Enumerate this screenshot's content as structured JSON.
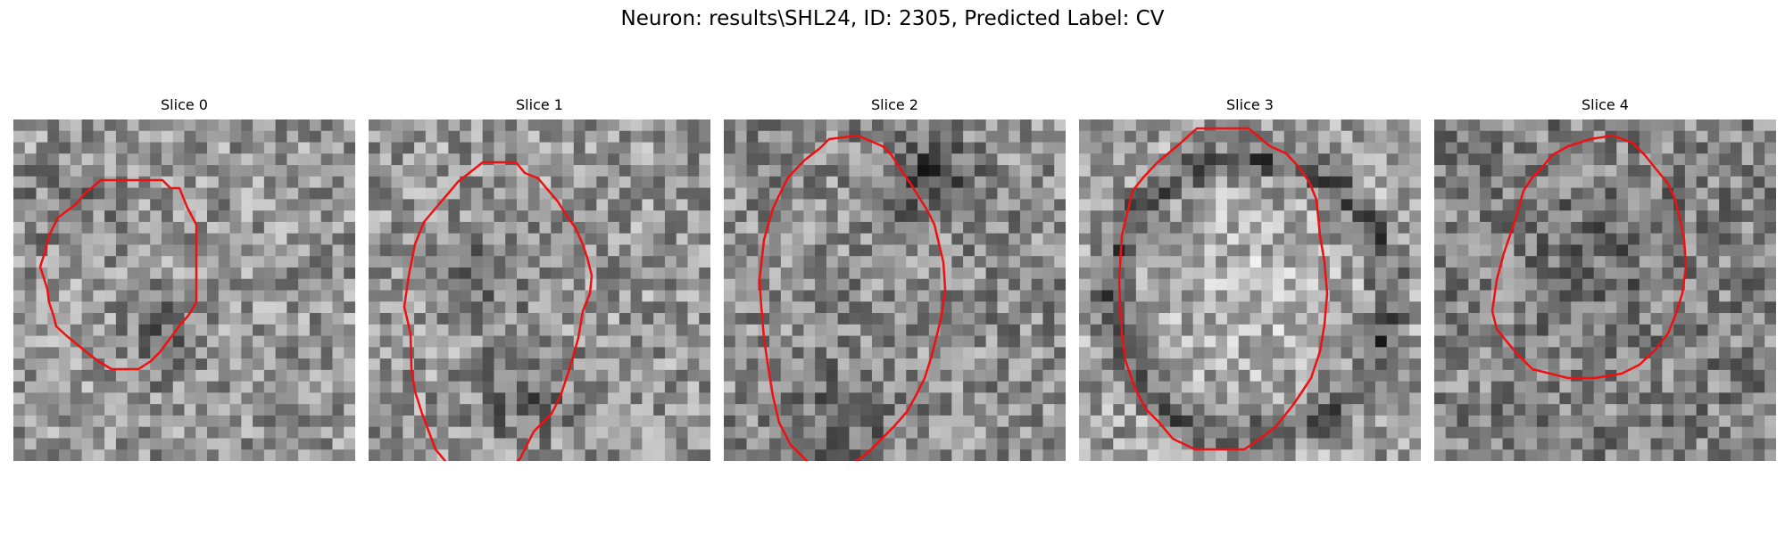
{
  "figure": {
    "title": "Neuron: results\\SHL24, ID: 2305, Predicted Label: CV"
  },
  "panels": [
    {
      "title": "Slice 0",
      "seed": 11,
      "base": 150,
      "dark_blob": "center-low"
    },
    {
      "title": "Slice 1",
      "seed": 23,
      "base": 150,
      "dark_blob": "bottom"
    },
    {
      "title": "Slice 2",
      "seed": 37,
      "base": 140,
      "dark_blob": "top"
    },
    {
      "title": "Slice 3",
      "seed": 53,
      "base": 160,
      "dark_blob": "ring"
    },
    {
      "title": "Slice 4",
      "seed": 71,
      "base": 130,
      "dark_blob": "none"
    }
  ],
  "colors": {
    "contour": "#ee1111",
    "background": "#ffffff"
  }
}
